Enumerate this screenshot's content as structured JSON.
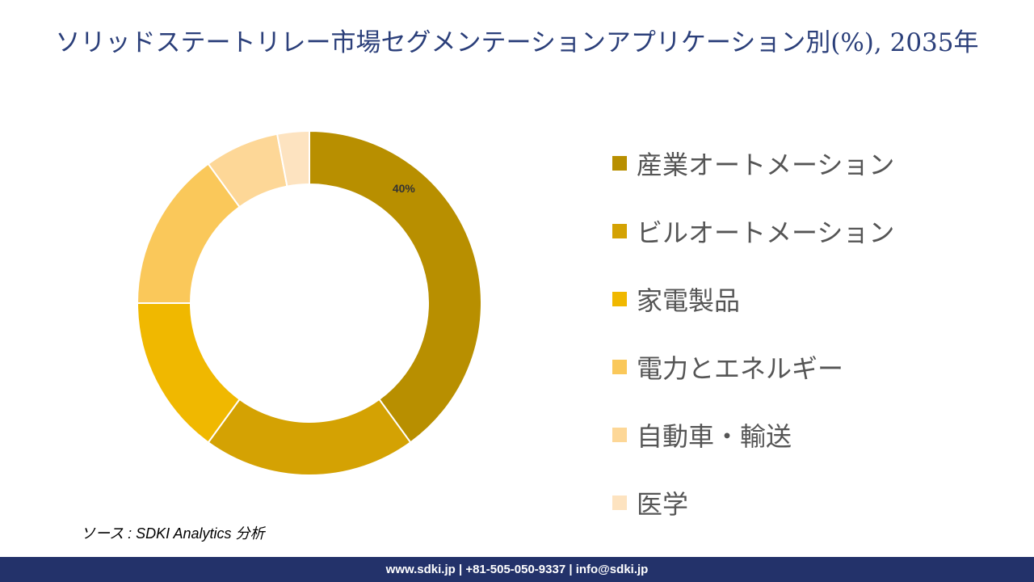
{
  "chart_data": {
    "type": "pie",
    "title": "ソリッドステートリレー市場セグメンテーションアプリケーション別(%), 2035年",
    "categories": [
      "産業オートメーション",
      "ビルオートメーション",
      "家電製品",
      "電力とエネルギー",
      "自動車・輸送",
      "医学"
    ],
    "values": [
      40,
      20,
      15,
      15,
      7,
      3
    ],
    "colors": [
      "#B88F00",
      "#D4A203",
      "#F0B800",
      "#FAC85A",
      "#FDD797",
      "#FDE3C0"
    ],
    "data_labels": [
      "40%",
      "",
      "",
      "",
      "",
      ""
    ],
    "legend_position": "right"
  },
  "source": "ソース : SDKI Analytics 分析",
  "footer": "www.sdki.jp | +81-505-050-9337 | info@sdki.jp"
}
